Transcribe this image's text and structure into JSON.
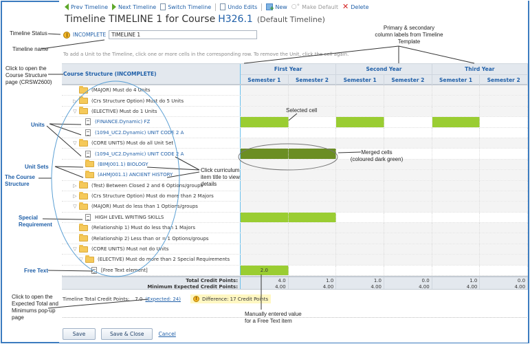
{
  "toolbar": {
    "prev": "Prev Timeline",
    "next": "Next Timeline",
    "switch": "Switch Timeline",
    "undo": "Undo Edits",
    "new": "New",
    "make_default": "Make Default",
    "delete": "Delete"
  },
  "header": {
    "title_prefix": "Timeline TIMELINE 1 for Course",
    "course_code": "H326.1",
    "default_label": "(Default Timeline)"
  },
  "status": {
    "label": "INCOMPLETE",
    "timeline_name": "TIMELINE 1"
  },
  "hint": "To add a Unit to the Timeline, click one or more cells in the corresponding row. To remove the Unit, click the cell again.",
  "grid": {
    "structure_header": "Course Structure (INCOMPLETE)",
    "years": [
      "First Year",
      "Second Year",
      "Third Year"
    ],
    "semesters": [
      "Semester 1",
      "Semester 2",
      "Semester 1",
      "Semester 2",
      "Semester 1",
      "Semester 2"
    ],
    "rows": [
      {
        "label": "(MAJOR) Must do 4 Units",
        "type": "folder",
        "indent": 1,
        "toggle": ""
      },
      {
        "label": "(Crs Structure Option) Must do 5 Units",
        "type": "folder",
        "indent": 1,
        "toggle": "▷"
      },
      {
        "label": "(ELECTIVE) Must do 1 Units",
        "type": "folder",
        "indent": 1,
        "toggle": "▽"
      },
      {
        "label": "(FINANCE.Dynamic) FZ",
        "type": "unit",
        "indent": 2,
        "link": true
      },
      {
        "label": "(1094_UC2.Dynamic) UNIT CODE 2 A",
        "type": "unit",
        "indent": 2,
        "link": true
      },
      {
        "label": "(CORE UNITS) Must do all Unit Set",
        "type": "folder",
        "indent": 1,
        "toggle": "▽"
      },
      {
        "label": "(1094_UC2.Dynamic) UNIT CODE 2 A",
        "type": "unit",
        "indent": 2,
        "link": true
      },
      {
        "label": "(BIMJ001.1) BIOLOGY",
        "type": "folder",
        "indent": 2,
        "link": true
      },
      {
        "label": "(AHMJ001.1) ANCIENT HISTORY",
        "type": "folder",
        "indent": 2,
        "link": true
      },
      {
        "label": "(Test) Between Closed 2 and 6 Options/groups",
        "type": "folder",
        "indent": 1,
        "toggle": "▷"
      },
      {
        "label": "(Crs Structure Option) Must do more than 2 Majors",
        "type": "folder",
        "indent": 1,
        "toggle": "▷"
      },
      {
        "label": "(MAJOR) Must do less than 1 Options/groups",
        "type": "folder",
        "indent": 1,
        "toggle": "▽"
      },
      {
        "label": "HIGH LEVEL WRITING SKILLS",
        "type": "unit",
        "indent": 2
      },
      {
        "label": "(Relationship 1) Must do less than 1 Majors",
        "type": "folder",
        "indent": 1,
        "toggle": ""
      },
      {
        "label": "(Relationship 2) Less than or = 1 Options/groups",
        "type": "folder",
        "indent": 1,
        "toggle": ""
      },
      {
        "label": "(CORE UNITS) Must not do Units",
        "type": "folder",
        "indent": 1,
        "toggle": "▽"
      },
      {
        "label": "(ELECTIVE) Must do more than 2 Special Requirements",
        "type": "folder",
        "indent": 2,
        "toggle": "▽"
      },
      {
        "label": "[Free Text element]",
        "type": "unit",
        "indent": 3
      }
    ],
    "cell_states": [
      [
        "g",
        "g",
        "g",
        "g",
        "g",
        "g"
      ],
      [
        "g",
        "g",
        "g",
        "g",
        "g",
        "g"
      ],
      [
        "g",
        "g",
        "g",
        "g",
        "g",
        "g"
      ],
      [
        "sel",
        "w",
        "sel",
        "w",
        "sel",
        "w"
      ],
      [
        "w",
        "w",
        "w",
        "w",
        "w",
        "w"
      ],
      [
        "g",
        "g",
        "g",
        "g",
        "g",
        "g"
      ],
      [
        "merged",
        "merged",
        "w",
        "w",
        "w",
        "w"
      ],
      [
        "g",
        "g",
        "g",
        "g",
        "g",
        "g"
      ],
      [
        "g",
        "g",
        "g",
        "g",
        "g",
        "g"
      ],
      [
        "g",
        "g",
        "g",
        "g",
        "g",
        "g"
      ],
      [
        "g",
        "g",
        "g",
        "g",
        "g",
        "g"
      ],
      [
        "g",
        "g",
        "g",
        "g",
        "g",
        "g"
      ],
      [
        "sel",
        "sel",
        "w",
        "w",
        "w",
        "w"
      ],
      [
        "g",
        "g",
        "g",
        "g",
        "g",
        "g"
      ],
      [
        "g",
        "g",
        "g",
        "g",
        "g",
        "g"
      ],
      [
        "g",
        "g",
        "g",
        "g",
        "g",
        "g"
      ],
      [
        "g",
        "g",
        "g",
        "g",
        "g",
        "g"
      ],
      [
        "sel",
        "w",
        "w",
        "w",
        "w",
        "w"
      ]
    ],
    "free_text_value": "2.0",
    "totals_label": "Total Credit Points:",
    "minimums_label": "Minimum Expected Credit Points:",
    "totals": [
      "4.0",
      "1.0",
      "1.0",
      "0.0",
      "1.0",
      "0.0"
    ],
    "minimums": [
      "4.00",
      "4.00",
      "4.00",
      "4.00",
      "4.00",
      "4.00"
    ]
  },
  "summary": {
    "label": "Timeline Total Credit Points:",
    "value": "7.0",
    "expected_link": "(Expected: 24)",
    "difference": "Difference: 17 Credit Points"
  },
  "buttons": {
    "save": "Save",
    "save_close": "Save & Close",
    "cancel": "Cancel"
  },
  "annotations": {
    "timeline_status": "Timeline Status",
    "timeline_name": "Timeline name",
    "course_structure_link": "Click to open the Course Structure page (CRSW2600)",
    "units": "Units",
    "unit_sets": "Unit Sets",
    "course_structure": "The Course Structure",
    "special_requirement": "Special Requirement",
    "free_text": "Free Text",
    "expected_popup": "Click to open the Expected Total and Minimums pop-up page",
    "column_labels": "Primary & secondary column labels from Timeline Template",
    "selected_cell": "Selected cell",
    "merged_cells": "Merged cells (coloured dark green)",
    "click_title": "Click curriculum item title to view details",
    "manual_value": "Manually entered value for a Free Text item"
  },
  "colors": {
    "accent": "#1f5fa8",
    "selected_cell": "#9acd32",
    "merged_cell": "#6b8e23",
    "frame_border": "#3b7bbf"
  }
}
